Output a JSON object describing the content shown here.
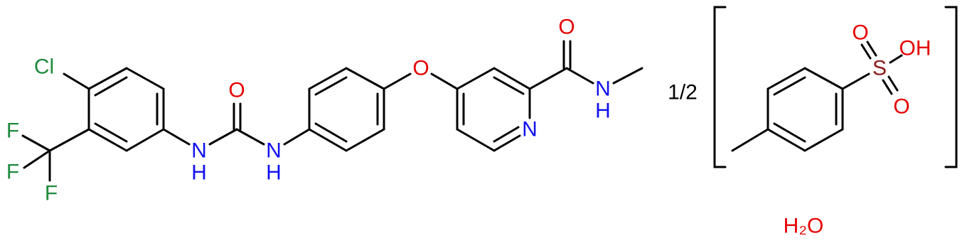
{
  "structure": {
    "labels": [
      "Cl",
      "F",
      "F",
      "F",
      "N",
      "H",
      "O",
      "N",
      "H",
      "O",
      "N",
      "O",
      "N",
      "H",
      "1/2",
      "S",
      "O",
      "OH",
      "O",
      "H₂O"
    ]
  }
}
